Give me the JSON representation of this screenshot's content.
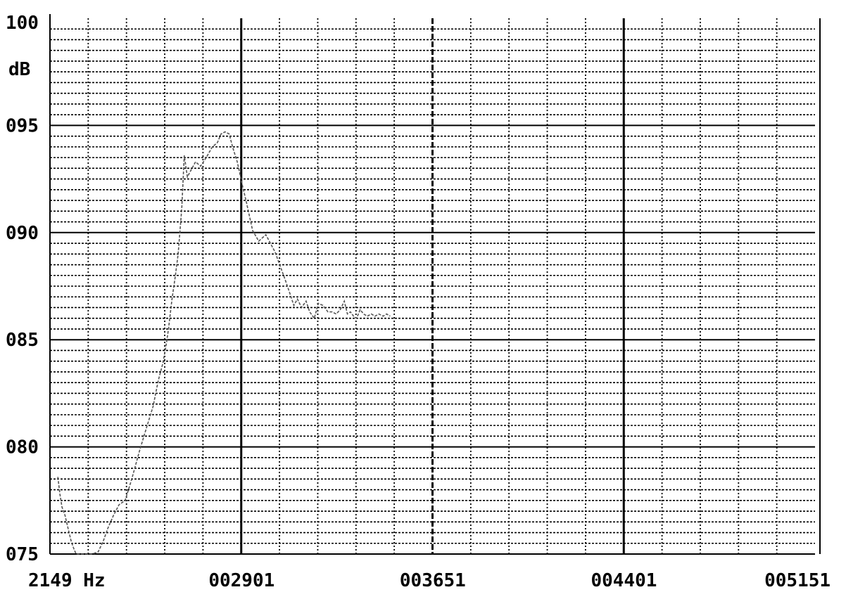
{
  "chart_data": {
    "type": "line",
    "title": "",
    "xlabel": "",
    "ylabel": "dB",
    "xlim": [
      2149,
      5151
    ],
    "ylim": [
      75,
      100
    ],
    "x_tick_labels": [
      {
        "value": 2149,
        "label": "2149 Hz"
      },
      {
        "value": 2901,
        "label": "002901"
      },
      {
        "value": 3651,
        "label": "003651"
      },
      {
        "value": 4401,
        "label": "004401"
      },
      {
        "value": 5151,
        "label": "005151"
      }
    ],
    "y_tick_labels": [
      {
        "value": 100,
        "label": "100"
      },
      {
        "value": 95,
        "label": "095"
      },
      {
        "value": 90,
        "label": "090"
      },
      {
        "value": 85,
        "label": "085"
      },
      {
        "value": 80,
        "label": "080"
      },
      {
        "value": 75,
        "label": "075"
      }
    ],
    "grid": true,
    "series": [
      {
        "color": "#555555",
        "x": [
          2180,
          2188,
          2196,
          2208,
          2220,
          2232,
          2244,
          2252,
          2262,
          2272,
          2290,
          2314,
          2338,
          2358,
          2376,
          2398,
          2420,
          2444,
          2470,
          2500,
          2528,
          2554,
          2574,
          2592,
          2604,
          2614,
          2620,
          2628,
          2640,
          2652,
          2666,
          2676,
          2688,
          2702,
          2720,
          2740,
          2762,
          2786,
          2806,
          2820,
          2836,
          2852,
          2868,
          2884,
          2904,
          2920,
          2944,
          2968,
          2996,
          3032,
          3072,
          3092,
          3106,
          3120,
          3136,
          3154,
          3168,
          3186,
          3202,
          3220,
          3240,
          3256,
          3272,
          3288,
          3304,
          3316,
          3328,
          3340,
          3352,
          3366,
          3380,
          3394,
          3410,
          3424,
          3440,
          3456,
          3470,
          3484
        ],
        "y": [
          78.6,
          77.8,
          77.2,
          76.8,
          76.2,
          75.6,
          75.2,
          75.0,
          75.0,
          75.0,
          75.0,
          75.0,
          75.1,
          75.6,
          76.2,
          76.8,
          77.3,
          77.5,
          78.5,
          79.8,
          80.9,
          81.9,
          83.1,
          83.9,
          84.7,
          85.5,
          86.1,
          86.9,
          87.9,
          89.0,
          91.1,
          93.6,
          92.6,
          92.9,
          93.3,
          93.1,
          93.5,
          94.0,
          94.2,
          94.6,
          94.7,
          94.6,
          93.9,
          93.3,
          92.2,
          91.4,
          90.1,
          89.6,
          89.9,
          89.1,
          87.8,
          87.1,
          86.6,
          86.9,
          86.5,
          86.8,
          86.3,
          86.0,
          86.7,
          86.6,
          86.3,
          86.3,
          86.2,
          86.4,
          86.8,
          86.2,
          86.3,
          86.1,
          86.0,
          86.4,
          86.2,
          86.1,
          86.2,
          86.1,
          86.2,
          86.1,
          86.2,
          86.1
        ]
      }
    ]
  }
}
